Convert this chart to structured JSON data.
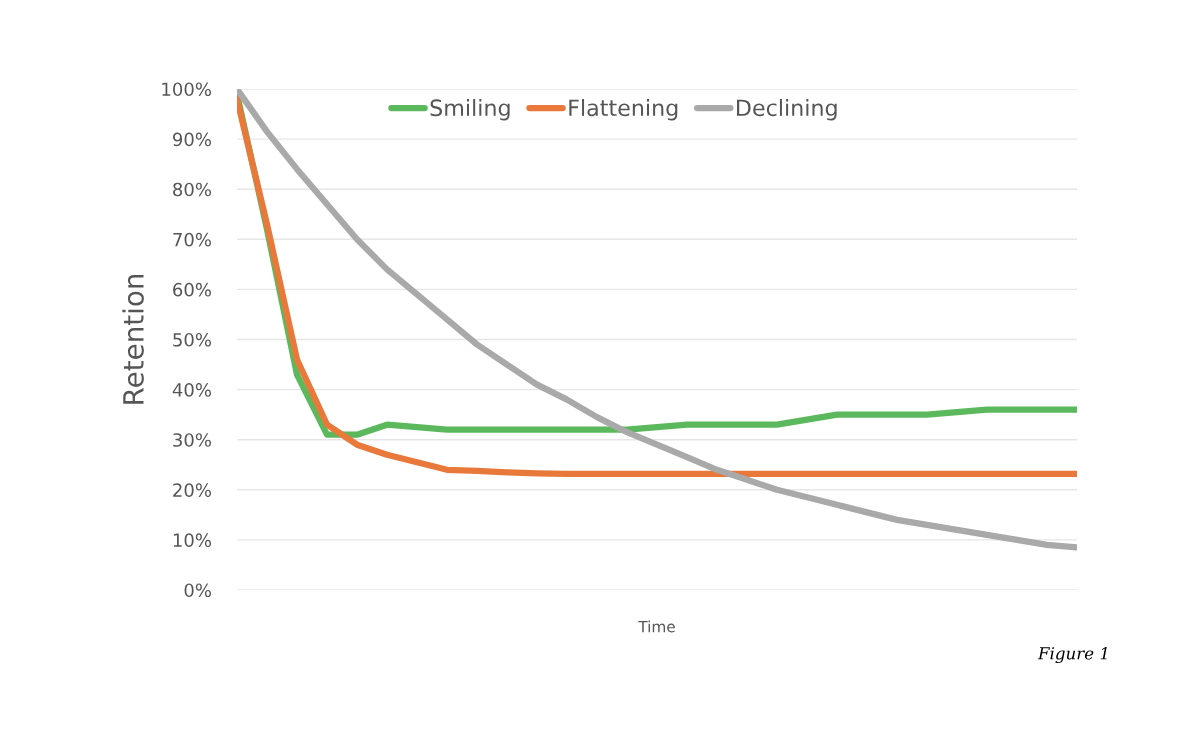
{
  "chart_data": {
    "type": "line",
    "xlabel": "Time",
    "ylabel": "Retention",
    "categories": [
      null,
      null,
      null,
      null,
      null,
      null,
      null,
      null,
      null,
      null,
      null,
      null,
      null,
      null,
      null,
      null,
      null,
      null,
      null,
      null,
      null,
      null,
      null,
      null,
      null,
      null,
      null,
      null,
      null
    ],
    "series": [
      {
        "name": "Smiling",
        "color": "#5cb85c",
        "values": [
          99,
          72,
          43,
          31,
          31,
          33,
          32.5,
          32,
          32,
          32,
          32,
          32,
          32,
          32,
          32.5,
          33,
          33,
          33,
          33,
          34,
          35,
          35,
          35,
          35,
          35.5,
          36,
          36,
          36,
          36
        ]
      },
      {
        "name": "Flattening",
        "color": "#e8793a",
        "values": [
          98,
          73,
          46,
          33,
          29,
          27,
          25.5,
          24,
          23.8,
          23.5,
          23.3,
          23.2,
          23.2,
          23.2,
          23.2,
          23.2,
          23.2,
          23.2,
          23.2,
          23.2,
          23.2,
          23.2,
          23.2,
          23.2,
          23.2,
          23.2,
          23.2,
          23.2,
          23.2
        ]
      },
      {
        "name": "Declining",
        "color": "#a9a9a9",
        "values": [
          100,
          91.5,
          84,
          77,
          70,
          64,
          59,
          54,
          49,
          45,
          41,
          38,
          34.5,
          31.5,
          29,
          26.5,
          24,
          22,
          20,
          18.5,
          17,
          15.5,
          14,
          13,
          12,
          11,
          10,
          9,
          8.5
        ]
      }
    ],
    "ylim": [
      0,
      100
    ],
    "yticks": [
      {
        "value": 0,
        "label": "0%"
      },
      {
        "value": 10,
        "label": "10%"
      },
      {
        "value": 20,
        "label": "20%"
      },
      {
        "value": 30,
        "label": "30%"
      },
      {
        "value": 40,
        "label": "40%"
      },
      {
        "value": 50,
        "label": "50%"
      },
      {
        "value": 60,
        "label": "60%"
      },
      {
        "value": 70,
        "label": "70%"
      },
      {
        "value": 80,
        "label": "80%"
      },
      {
        "value": 90,
        "label": "90%"
      },
      {
        "value": 100,
        "label": "100%"
      }
    ],
    "grid": "y",
    "legend": "top",
    "tick_labels": "y",
    "marker": "none",
    "line_style": "solid",
    "annotations": [
      "Figure 1"
    ]
  }
}
